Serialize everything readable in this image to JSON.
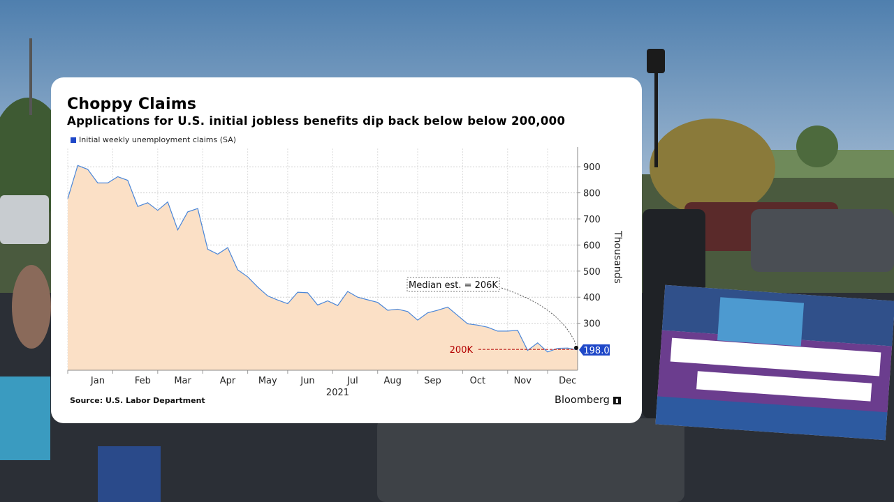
{
  "colors": {
    "fill": "#fbe0c6",
    "line": "#4a86d8",
    "label_bg": "#1f48c8",
    "ref_line": "#b30000"
  },
  "card": {
    "title": "Choppy Claims",
    "subtitle": "Applications for U.S. initial jobless benefits dip back below below 200,000",
    "source": "Source: U.S. Labor Department",
    "brand": "Bloomberg"
  },
  "chart_data": {
    "type": "area",
    "title": "Choppy Claims",
    "subtitle": "Applications for U.S. initial jobless benefits dip back below below 200,000",
    "ylabel": "Thousands",
    "ylim": [
      120,
      970
    ],
    "yticks": [
      300,
      400,
      500,
      600,
      700,
      800,
      900
    ],
    "year_label": "2021",
    "month_labels": [
      {
        "label": "Jan",
        "week": 3
      },
      {
        "label": "Feb",
        "week": 7.5
      },
      {
        "label": "Mar",
        "week": 11.5
      },
      {
        "label": "Apr",
        "week": 16
      },
      {
        "label": "May",
        "week": 20
      },
      {
        "label": "Jun",
        "week": 24
      },
      {
        "label": "Jul",
        "week": 28.5
      },
      {
        "label": "Aug",
        "week": 32.5
      },
      {
        "label": "Sep",
        "week": 36.5
      },
      {
        "label": "Oct",
        "week": 41
      },
      {
        "label": "Nov",
        "week": 45.5
      },
      {
        "label": "Dec",
        "week": 50
      }
    ],
    "series": [
      {
        "name": "Initial weekly unemployment claims (SA)",
        "values": [
          778,
          905,
          890,
          838,
          838,
          862,
          848,
          748,
          762,
          733,
          765,
          658,
          727,
          740,
          584,
          565,
          590,
          505,
          478,
          439,
          405,
          389,
          375,
          419,
          417,
          370,
          386,
          368,
          422,
          400,
          390,
          380,
          350,
          354,
          345,
          312,
          340,
          350,
          362,
          330,
          298,
          293,
          285,
          270,
          270,
          273,
          196,
          225,
          190,
          204,
          205,
          198
        ]
      }
    ],
    "last_value_label": "198.0",
    "reference_line": {
      "value": 200,
      "label": "200K"
    },
    "annotation": {
      "text": "Median est. = 206K",
      "value": 206
    }
  }
}
